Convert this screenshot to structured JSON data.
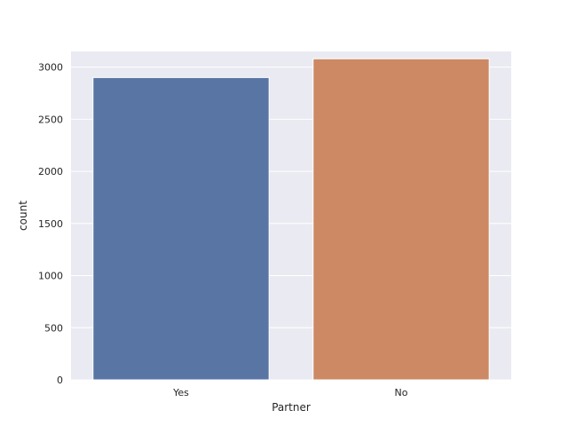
{
  "chart_data": {
    "type": "bar",
    "title": "",
    "xlabel": "Partner",
    "ylabel": "count",
    "categories": [
      "Yes",
      "No"
    ],
    "values": [
      2900,
      3080
    ],
    "ylim": [
      0,
      3150
    ],
    "yticks": [
      0,
      500,
      1000,
      1500,
      2000,
      2500,
      3000
    ],
    "grid": true,
    "colors": [
      "#5975a4",
      "#cc8963"
    ],
    "background": "#eaeaf2",
    "grid_color": "#ffffff"
  }
}
